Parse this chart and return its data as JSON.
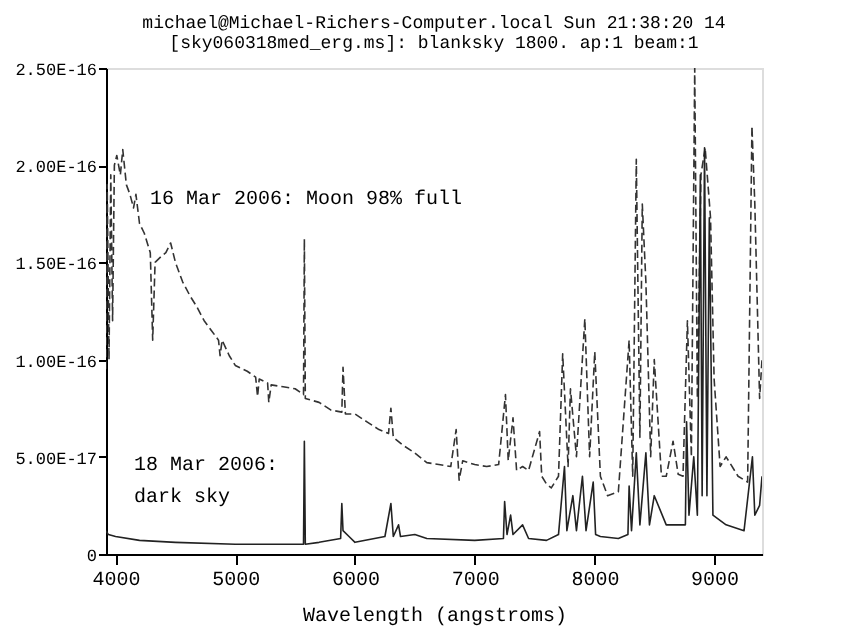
{
  "chart_data": {
    "type": "line",
    "title": "michael@Michael-Richers-Computer.local Sun 21:38:20 14",
    "subtitle": "[sky060318med_erg.ms]: blanksky 1800. ap:1 beam:1",
    "xlabel": "Wavelength (angstroms)",
    "annotations": [
      "16 Mar 2006: Moon 98% full",
      "18 Mar 2006:",
      "dark sky"
    ],
    "xlim": [
      3920,
      9400
    ],
    "xticks": [
      4000,
      5000,
      6000,
      7000,
      8000,
      9000
    ],
    "ylim": [
      0,
      2.5e-16
    ],
    "yticks": [
      0,
      {
        "value": 5e-17,
        "label": "5.00E-17"
      },
      {
        "value": 1e-16,
        "label": "1.00E-16"
      },
      {
        "value": 1.5e-16,
        "label": "1.50E-16"
      },
      {
        "value": 2e-16,
        "label": "2.00E-16"
      },
      {
        "value": 2.5e-16,
        "label": "2.50E-16"
      }
    ],
    "grid": false,
    "marker": "none",
    "series": [
      {
        "color": "#333333",
        "line_style": "dashed",
        "x": [
          3920,
          3930,
          3945,
          3960,
          3975,
          3990,
          4010,
          4040,
          4060,
          4090,
          4120,
          4150,
          4170,
          4200,
          4240,
          4290,
          4310,
          4330,
          4380,
          4420,
          4460,
          4500,
          4560,
          4620,
          4680,
          4740,
          4800,
          4860,
          4873,
          4890,
          4950,
          5000,
          5100,
          5170,
          5186,
          5200,
          5270,
          5280,
          5300,
          5400,
          5500,
          5570,
          5577,
          5585,
          5700,
          5800,
          5890,
          5900,
          5920,
          6000,
          6100,
          6200,
          6280,
          6300,
          6320,
          6400,
          6500,
          6600,
          6700,
          6800,
          6845,
          6870,
          6900,
          7000,
          7100,
          7200,
          7257,
          7280,
          7320,
          7350,
          7400,
          7450,
          7542,
          7560,
          7600,
          7640,
          7700,
          7735,
          7780,
          7800,
          7850,
          7920,
          7960,
          8003,
          8050,
          8110,
          8200,
          8290,
          8320,
          8350,
          8380,
          8400,
          8430,
          8470,
          8500,
          8560,
          8600,
          8657,
          8700,
          8740,
          8777,
          8810,
          8838,
          8860,
          8890,
          8925,
          8970,
          9000,
          9050,
          9100,
          9200,
          9280,
          9316,
          9340,
          9380,
          9400
        ],
        "values": [
          9.5e-17,
          1.9e-16,
          1e-16,
          1.95e-16,
          1.2e-16,
          2e-16,
          2.05e-16,
          1.95e-16,
          2.08e-16,
          1.9e-16,
          1.85e-16,
          1.78e-16,
          1.85e-16,
          1.7e-16,
          1.65e-16,
          1.55e-16,
          1.1e-16,
          1.5e-16,
          1.53e-16,
          1.55e-16,
          1.6e-16,
          1.5e-16,
          1.4e-16,
          1.33e-16,
          1.27e-16,
          1.2e-16,
          1.15e-16,
          1.1e-16,
          1.02e-16,
          1.1e-16,
          1.02e-16,
          9.7e-17,
          9.4e-17,
          9.1e-17,
          8.1e-17,
          9e-17,
          8.8e-17,
          7.8e-17,
          8.7e-17,
          8.6e-17,
          8.5e-17,
          8.2e-17,
          1.62e-16,
          8e-17,
          7.8e-17,
          7.4e-17,
          7.3e-17,
          9.6e-17,
          7.2e-17,
          7.2e-17,
          6.8e-17,
          6.4e-17,
          6.2e-17,
          7.5e-17,
          6e-17,
          5.6e-17,
          5.2e-17,
          4.7e-17,
          4.6e-17,
          4.5e-17,
          6.4e-17,
          3.8e-17,
          4.8e-17,
          4.6e-17,
          4.5e-17,
          4.6e-17,
          8.2e-17,
          4.8e-17,
          7e-17,
          4.3e-17,
          4.5e-17,
          4.3e-17,
          6.3e-17,
          4e-17,
          3.6e-17,
          3.4e-17,
          4e-17,
          1.03e-16,
          4.5e-17,
          8.5e-17,
          5e-17,
          1.21e-16,
          5e-17,
          1.04e-16,
          4e-17,
          3e-17,
          3.2e-17,
          1.1e-16,
          4e-17,
          2.03e-16,
          6e-17,
          1.8e-16,
          1.4e-16,
          5e-17,
          1e-16,
          4e-17,
          4e-17,
          5.8e-17,
          4.1e-17,
          4e-17,
          1.2e-16,
          5e-17,
          2.5e-16,
          8e-17,
          1.95e-16,
          2.09e-16,
          1.73e-16,
          9e-17,
          4.5e-17,
          5e-17,
          4e-17,
          3.7e-17,
          2.2e-16,
          1.8e-16,
          8e-17,
          1e-16
        ]
      },
      {
        "color": "#222222",
        "line_style": "solid",
        "x": [
          3920,
          3940,
          4000,
          4200,
          4500,
          5000,
          5500,
          5570,
          5577,
          5585,
          5700,
          5880,
          5890,
          5900,
          5950,
          6000,
          6250,
          6300,
          6320,
          6364,
          6380,
          6500,
          6600,
          7000,
          7240,
          7250,
          7270,
          7300,
          7320,
          7400,
          7450,
          7600,
          7700,
          7750,
          7770,
          7820,
          7850,
          7900,
          7930,
          7990,
          8010,
          8050,
          8200,
          8280,
          8290,
          8310,
          8350,
          8380,
          8430,
          8460,
          8500,
          8600,
          8700,
          8760,
          8770,
          8790,
          8830,
          8860,
          8885,
          8900,
          8920,
          8940,
          8960,
          8990,
          9100,
          9250,
          9320,
          9340,
          9380,
          9400
        ],
        "values": [
          1.2e-17,
          1e-17,
          9e-18,
          7e-18,
          6e-18,
          5e-18,
          5e-18,
          5e-18,
          5.8e-17,
          5e-18,
          6e-18,
          8e-18,
          2.6e-17,
          1.2e-17,
          9e-18,
          6e-18,
          9e-18,
          2.6e-17,
          9e-18,
          1.5e-17,
          9e-18,
          1e-17,
          8e-18,
          7e-18,
          8e-18,
          2.7e-17,
          1e-17,
          2e-17,
          1e-17,
          1.5e-17,
          8e-18,
          7e-18,
          1e-17,
          4.5e-17,
          1.2e-17,
          3e-17,
          1.2e-17,
          4e-17,
          1.2e-17,
          3.7e-17,
          1e-17,
          9e-18,
          8e-18,
          1e-17,
          3.5e-17,
          1.2e-17,
          5.2e-17,
          1.5e-17,
          5.2e-17,
          1.5e-17,
          3e-17,
          1.5e-17,
          1.5e-17,
          1.5e-17,
          6.8e-17,
          2e-17,
          5e-17,
          2e-17,
          1.95e-16,
          3e-17,
          2.09e-16,
          3e-17,
          1.73e-16,
          2e-17,
          1.5e-17,
          1.2e-17,
          5e-17,
          2e-17,
          2.5e-17,
          4e-17
        ]
      }
    ]
  }
}
